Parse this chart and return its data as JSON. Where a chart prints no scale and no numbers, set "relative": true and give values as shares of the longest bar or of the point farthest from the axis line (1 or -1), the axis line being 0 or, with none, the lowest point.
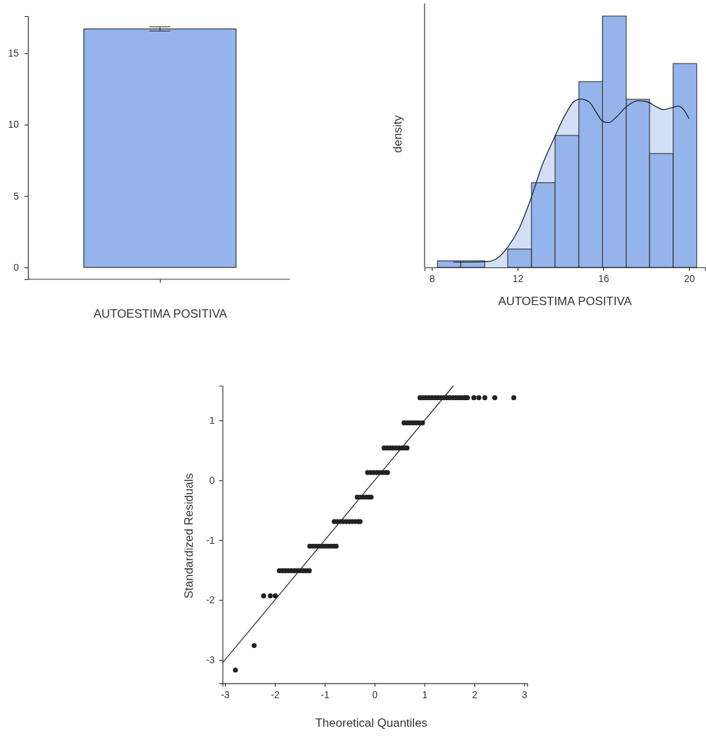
{
  "chart_data": [
    {
      "type": "bar",
      "categories": [
        "AUTOESTIMA POSITIVA"
      ],
      "values": [
        16.7
      ],
      "errors": [
        0.15
      ],
      "color": "#95b4eb",
      "ylim": [
        -0.83,
        17.6
      ],
      "yticks": [
        0,
        5,
        10,
        15
      ]
    },
    {
      "type": "histogram",
      "relative": true,
      "ylabel": "density",
      "xlabel": "AUTOESTIMA POSITIVA",
      "bins": [
        8.26,
        9.35,
        10.47,
        11.54,
        12.65,
        13.75,
        14.86,
        15.96,
        17.07,
        18.16,
        19.26,
        20.36
      ],
      "values": [
        0.026,
        0.026,
        0,
        0.073,
        0.337,
        0.525,
        0.739,
        1,
        0.669,
        0.453,
        0.811
      ],
      "color": "#95b4eb",
      "xlim": [
        7.66,
        20.76
      ],
      "xticks": [
        8,
        12,
        16,
        20
      ],
      "series": [
        {
          "type": "area",
          "color": "#d3dff6",
          "x": [
            9.0,
            9.89,
            10.65,
            11.09,
            11.52,
            12.07,
            12.61,
            13.15,
            13.7,
            14.24,
            14.67,
            14.95,
            15.33,
            15.65,
            15.98,
            16.25,
            16.63,
            17.07,
            17.61,
            18.04,
            18.48,
            18.81,
            19.13,
            19.51,
            19.78,
            20.0
          ],
          "values": [
            0.021,
            0.021,
            0.024,
            0.039,
            0.078,
            0.155,
            0.271,
            0.407,
            0.513,
            0.61,
            0.663,
            0.67,
            0.659,
            0.62,
            0.581,
            0.576,
            0.6,
            0.639,
            0.663,
            0.659,
            0.639,
            0.628,
            0.634,
            0.642,
            0.624,
            0.591
          ]
        }
      ]
    },
    {
      "type": "scatter",
      "xlabel": "Theoretical Quantiles",
      "ylabel": "Standardized Residuals",
      "xlim": [
        -3.05,
        3.06
      ],
      "ylim": [
        -3.39,
        1.58
      ],
      "xticks": [
        -3,
        -2,
        -1,
        0,
        1,
        2,
        3
      ],
      "yticks": [
        -3,
        -2,
        -1,
        0,
        1
      ],
      "series": [
        {
          "type": "scatter",
          "marker": "circle",
          "color": "#222222",
          "x": [
            -2.79,
            -2.415,
            -2.225,
            -2.09,
            -1.99,
            -1.91,
            -1.85,
            -1.79,
            -1.73,
            -1.67,
            -1.61,
            -1.55,
            -1.49,
            -1.43,
            -1.37,
            -1.31,
            -1.3,
            -1.24,
            -1.18,
            -1.12,
            -1.06,
            -1.0,
            -0.94,
            -0.88,
            -0.82,
            -0.77,
            -0.81,
            -0.75,
            -0.69,
            -0.63,
            -0.57,
            -0.51,
            -0.45,
            -0.39,
            -0.33,
            -0.29,
            -0.35,
            -0.29,
            -0.23,
            -0.17,
            -0.11,
            -0.07,
            -0.14,
            -0.08,
            -0.02,
            0.04,
            0.1,
            0.16,
            0.22,
            0.26,
            0.19,
            0.25,
            0.31,
            0.37,
            0.43,
            0.49,
            0.55,
            0.61,
            0.65,
            0.59,
            0.65,
            0.71,
            0.77,
            0.83,
            0.89,
            0.96,
            0.91,
            0.97,
            1.03,
            1.09,
            1.15,
            1.21,
            1.27,
            1.33,
            1.39,
            1.45,
            1.51,
            1.57,
            1.63,
            1.69,
            1.75,
            1.81,
            1.86,
            1.99,
            2.09,
            2.21,
            2.41,
            2.79
          ],
          "values": [
            -3.17,
            -2.76,
            -1.93,
            -1.93,
            -1.93,
            -1.51,
            -1.51,
            -1.51,
            -1.51,
            -1.51,
            -1.51,
            -1.51,
            -1.51,
            -1.51,
            -1.51,
            -1.51,
            -1.1,
            -1.1,
            -1.1,
            -1.1,
            -1.1,
            -1.1,
            -1.1,
            -1.1,
            -1.1,
            -1.1,
            -0.69,
            -0.69,
            -0.69,
            -0.69,
            -0.69,
            -0.69,
            -0.69,
            -0.69,
            -0.69,
            -0.69,
            -0.28,
            -0.28,
            -0.28,
            -0.28,
            -0.28,
            -0.28,
            0.13,
            0.13,
            0.13,
            0.13,
            0.13,
            0.13,
            0.13,
            0.13,
            0.54,
            0.54,
            0.54,
            0.54,
            0.54,
            0.54,
            0.54,
            0.54,
            0.54,
            0.96,
            0.96,
            0.96,
            0.96,
            0.96,
            0.96,
            0.96,
            1.38,
            1.38,
            1.38,
            1.38,
            1.38,
            1.38,
            1.38,
            1.38,
            1.38,
            1.38,
            1.38,
            1.38,
            1.38,
            1.38,
            1.38,
            1.38,
            1.38,
            1.38,
            1.38,
            1.38,
            1.38,
            1.38
          ]
        },
        {
          "type": "line",
          "marker": "none",
          "color": "#222222",
          "x": [
            -3.05,
            1.58
          ],
          "values": [
            -3.05,
            1.58
          ]
        }
      ]
    }
  ]
}
